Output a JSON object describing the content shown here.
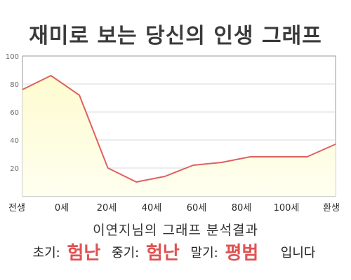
{
  "chart_data": {
    "type": "area",
    "title": "재미로 보는 당신의 인생 그래프",
    "x_labels": [
      "전생",
      "0세",
      "20세",
      "40세",
      "60세",
      "80세",
      "100세",
      "환생"
    ],
    "points": [
      {
        "x": "전생",
        "y": 76
      },
      {
        "x": "0세",
        "y": 86
      },
      {
        "x": "",
        "y": 72
      },
      {
        "x": "",
        "y": 20
      },
      {
        "x": "40세",
        "y": 10
      },
      {
        "x": "",
        "y": 14
      },
      {
        "x": "",
        "y": 22
      },
      {
        "x": "",
        "y": 24
      },
      {
        "x": "",
        "y": 28
      },
      {
        "x": "",
        "y": 28
      },
      {
        "x": "100세",
        "y": 28
      },
      {
        "x": "환생",
        "y": 37
      }
    ],
    "y_ticks": [
      20,
      40,
      60,
      80,
      100
    ],
    "ylim": [
      0,
      100
    ],
    "grid": true,
    "colors": {
      "line": "#e06060",
      "fill_top": "#fdfbcf",
      "fill_bottom": "#fffff0",
      "grid": "#d8d8d8"
    }
  },
  "summary": {
    "title": "이연지님의 그래프 분석결과",
    "early_label": "초기:",
    "early_value": "험난",
    "mid_label": "중기:",
    "mid_value": "험난",
    "late_label": "말기:",
    "late_value": "평범",
    "ending": "입니다"
  }
}
